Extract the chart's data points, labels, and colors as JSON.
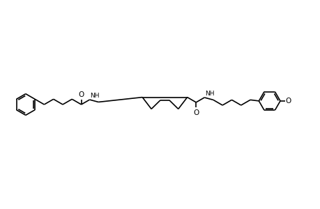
{
  "background": "#ffffff",
  "line_color": "#000000",
  "line_width": 1.2,
  "fig_width": 4.6,
  "fig_height": 3.0,
  "dpi": 100,
  "xlim": [
    0,
    46
  ],
  "ylim": [
    0,
    30
  ]
}
